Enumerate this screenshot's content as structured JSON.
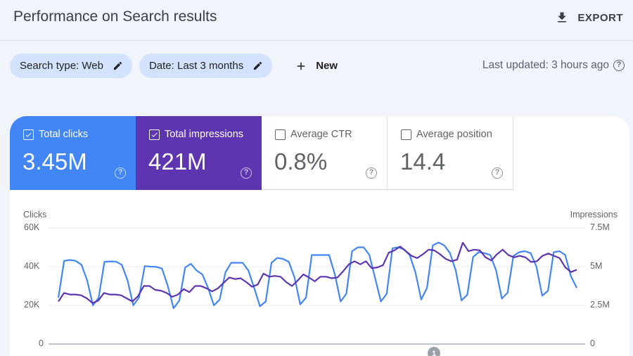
{
  "header": {
    "title": "Performance on Search results",
    "export_label": "EXPORT",
    "export_icon": "download-icon"
  },
  "filters": {
    "chips": [
      {
        "label": "Search type: Web",
        "icon": "edit-pencil-icon"
      },
      {
        "label": "Date: Last 3 months",
        "icon": "edit-pencil-icon"
      }
    ],
    "new_label": "New",
    "new_icon": "plus-icon",
    "last_updated": "Last updated: 3 hours ago",
    "help_icon": "help-circle-icon"
  },
  "cards": [
    {
      "label": "Total clicks",
      "value": "3.45M",
      "checked": true,
      "color": "#4285f4"
    },
    {
      "label": "Total impressions",
      "value": "421M",
      "checked": true,
      "color": "#5e35b1"
    },
    {
      "label": "Average CTR",
      "value": "0.8%",
      "checked": false
    },
    {
      "label": "Average position",
      "value": "14.4",
      "checked": false
    }
  ],
  "chart_data": {
    "type": "line",
    "title": "",
    "xlabel": "",
    "ylabel": "Clicks",
    "ylabel_right": "Impressions",
    "ylim": [
      0,
      60000
    ],
    "ylim_right": [
      0,
      7500000
    ],
    "yticks": [
      "0",
      "20K",
      "40K",
      "60K"
    ],
    "yticks_right": [
      "0",
      "2.5M",
      "5M",
      "7.5M"
    ],
    "grid": true,
    "legend": "none",
    "annotation_marker": "1",
    "series": [
      {
        "name": "Clicks",
        "axis": "left",
        "color": "#4285f4",
        "values": [
          24000,
          43000,
          43500,
          43000,
          41000,
          33000,
          20000,
          24000,
          42500,
          42700,
          42600,
          41000,
          33000,
          20000,
          24000,
          40300,
          40000,
          39900,
          39000,
          30000,
          18500,
          22500,
          39500,
          41500,
          38000,
          36000,
          29000,
          20000,
          23000,
          37000,
          42000,
          42000,
          42000,
          38000,
          29000,
          19500,
          22000,
          42000,
          44500,
          44000,
          42500,
          34500,
          20500,
          24000,
          46000,
          46000,
          46000,
          46000,
          36000,
          22000,
          26000,
          48000,
          50000,
          50000,
          46000,
          34000,
          22000,
          26000,
          49500,
          50000,
          49000,
          46000,
          37000,
          23000,
          29000,
          51000,
          52500,
          51000,
          47000,
          38000,
          22500,
          25500,
          45000,
          47500,
          47000,
          46000,
          38000,
          23500,
          26500,
          45500,
          47500,
          48000,
          47000,
          40000,
          25000,
          27500,
          47500,
          48000,
          46000,
          35000,
          29000
        ]
      },
      {
        "name": "Impressions",
        "axis": "right",
        "color": "#5e35b1",
        "values": [
          2750000,
          3300000,
          3200000,
          3200000,
          3150000,
          2950000,
          2650000,
          2800000,
          3300000,
          3200000,
          3200000,
          3150000,
          2950000,
          2750000,
          3100000,
          3750000,
          3750000,
          3500000,
          3450000,
          3300000,
          3050000,
          3200000,
          3550000,
          3350000,
          3750000,
          3750000,
          3600000,
          3400000,
          3600000,
          3950000,
          4300000,
          4200000,
          4250000,
          4000000,
          3700000,
          3850000,
          4550000,
          4350000,
          4400000,
          4350000,
          4000000,
          3750000,
          4100000,
          4500000,
          4300000,
          4050000,
          4350000,
          4350000,
          4250000,
          4300000,
          4700000,
          5150000,
          5350000,
          5150000,
          5350000,
          4900000,
          4950000,
          5100000,
          5900000,
          6050000,
          6300000,
          6000000,
          5700000,
          5550000,
          5800000,
          6100000,
          6050000,
          5800000,
          5500000,
          5350000,
          5450000,
          6550000,
          6000000,
          6100000,
          6050000,
          5600000,
          5400000,
          5800000,
          6100000,
          5750000,
          5600000,
          5700000,
          5600000,
          5300000,
          5350000,
          5700000,
          5850000,
          5700000,
          5550000,
          4950000,
          4650000,
          4800000
        ]
      }
    ]
  }
}
